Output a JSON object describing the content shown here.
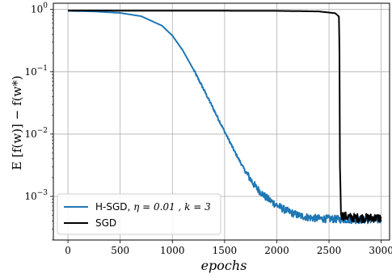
{
  "chart_data": {
    "type": "line",
    "xlabel": "epochs",
    "ylabel": "E [f(w)] − f(w*)",
    "xlim": [
      -140,
      3080
    ],
    "ylim_log10": [
      -3.7,
      0.1
    ],
    "yscale": "log",
    "grid": true,
    "legend_position": "lower-left",
    "x_ticks": [
      0,
      500,
      1000,
      1500,
      2000,
      2500,
      3000
    ],
    "x_tick_labels": [
      "0",
      "500",
      "1000",
      "1500",
      "2000",
      "2500",
      "3000"
    ],
    "y_tick_exponents": [
      0,
      -1,
      -2,
      -3
    ],
    "y_tick_labels": [
      {
        "base": "10",
        "exp": "0"
      },
      {
        "base": "10",
        "exp": "−1"
      },
      {
        "base": "10",
        "exp": "−2"
      },
      {
        "base": "10",
        "exp": "−3"
      }
    ],
    "series": [
      {
        "legend_label": {
          "prefix": "H-SGD, ",
          "math": "η = 0.01 , k = 3"
        },
        "color": "#1f77b4",
        "line_width": 2,
        "noise_log10": 0.06,
        "noise_start": 1700,
        "x": [
          0,
          250,
          500,
          700,
          900,
          1000,
          1100,
          1200,
          1300,
          1400,
          1500,
          1600,
          1700,
          1800,
          1900,
          2000,
          2100,
          2200,
          2300,
          2400,
          2600,
          2800,
          3000
        ],
        "y": [
          0.95,
          0.93,
          0.88,
          0.78,
          0.55,
          0.38,
          0.22,
          0.11,
          0.052,
          0.024,
          0.011,
          0.0051,
          0.0025,
          0.0014,
          0.00095,
          0.00072,
          0.00058,
          0.0005,
          0.00046,
          0.00044,
          0.00043,
          0.00042,
          0.00042
        ]
      },
      {
        "legend_label": {
          "prefix": "SGD",
          "math": ""
        },
        "color": "#000000",
        "line_width": 2,
        "noise_log10": 0.07,
        "noise_start": 2620,
        "x": [
          0,
          1000,
          2000,
          2400,
          2560,
          2595,
          2600,
          2605,
          2615,
          2700,
          2800,
          2900,
          3000
        ],
        "y": [
          0.96,
          0.955,
          0.95,
          0.93,
          0.87,
          0.77,
          0.2,
          0.003,
          0.0005,
          0.00046,
          0.00045,
          0.00045,
          0.00045
        ]
      }
    ]
  }
}
